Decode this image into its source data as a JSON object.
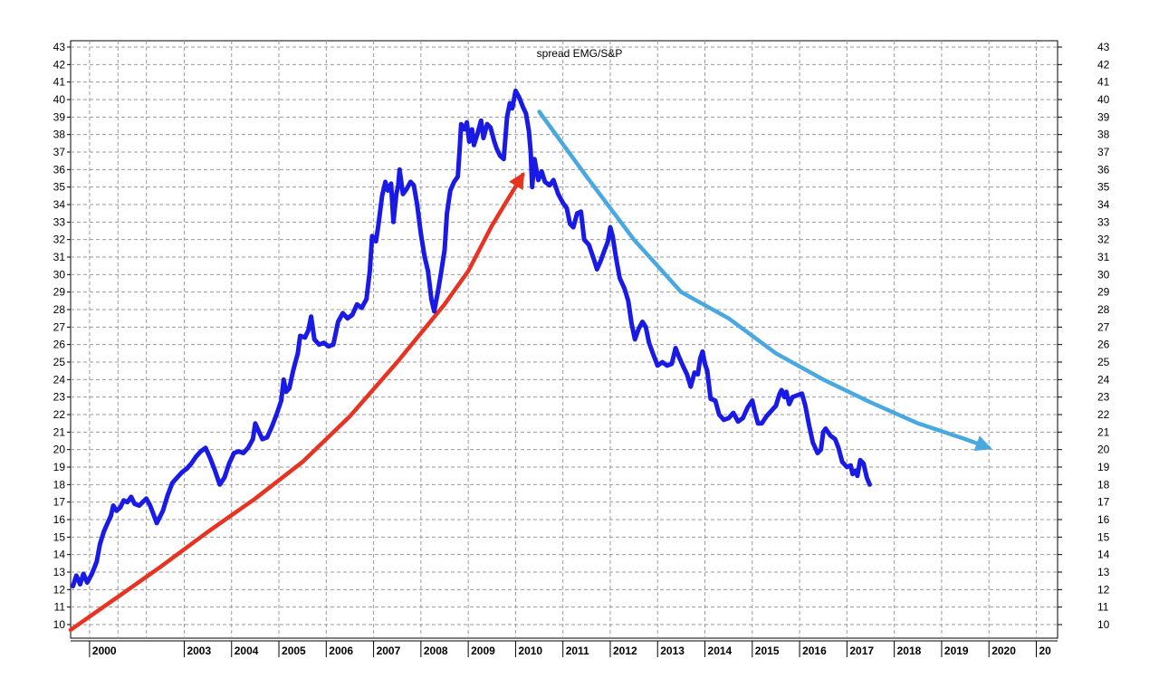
{
  "chart_data": {
    "type": "line",
    "title": "spread EMG/S&P",
    "xlabel": "",
    "ylabel": "",
    "grid": true,
    "legend": "none",
    "xlim": [
      1999.6,
      2020.45
    ],
    "ylim": [
      9.3,
      43.5
    ],
    "y_ticks": [
      10,
      11,
      12,
      13,
      14,
      15,
      16,
      17,
      18,
      19,
      20,
      21,
      22,
      23,
      24,
      25,
      26,
      27,
      28,
      29,
      30,
      31,
      32,
      33,
      34,
      35,
      36,
      37,
      38,
      39,
      40,
      41,
      42,
      43
    ],
    "x_tick_labels": [
      {
        "x": 2000.0,
        "label": "2000"
      },
      {
        "x": 2002.0,
        "label": "2003"
      },
      {
        "x": 2003.0,
        "label": "2004"
      },
      {
        "x": 2004.0,
        "label": "2005"
      },
      {
        "x": 2005.0,
        "label": "2006"
      },
      {
        "x": 2006.0,
        "label": "2007"
      },
      {
        "x": 2007.0,
        "label": "2008"
      },
      {
        "x": 2008.0,
        "label": "2009"
      },
      {
        "x": 2009.0,
        "label": "2010"
      },
      {
        "x": 2010.0,
        "label": "2011"
      },
      {
        "x": 2011.0,
        "label": "2012"
      },
      {
        "x": 2012.0,
        "label": "2013"
      },
      {
        "x": 2013.0,
        "label": "2014"
      },
      {
        "x": 2014.0,
        "label": "2015"
      },
      {
        "x": 2015.0,
        "label": "2016"
      },
      {
        "x": 2016.0,
        "label": "2017"
      },
      {
        "x": 2017.0,
        "label": "2018"
      },
      {
        "x": 2018.0,
        "label": "2019"
      },
      {
        "x": 2019.0,
        "label": "2020"
      },
      {
        "x": 2020.0,
        "label": "20"
      }
    ],
    "grid_x": [
      2000.0,
      2000.6,
      2001.2,
      2002.0,
      2003.0,
      2004.0,
      2005.0,
      2006.0,
      2007.0,
      2008.0,
      2009.0,
      2010.0,
      2011.0,
      2012.0,
      2013.0,
      2014.0,
      2015.0,
      2016.0,
      2017.0,
      2018.0,
      2019.0,
      2020.0
    ],
    "series": [
      {
        "color": "#1a1ae6",
        "points": [
          [
            1999.65,
            12.2
          ],
          [
            1999.72,
            12.8
          ],
          [
            1999.8,
            12.3
          ],
          [
            1999.87,
            12.9
          ],
          [
            1999.95,
            12.4
          ],
          [
            2000.05,
            12.9
          ],
          [
            2000.15,
            13.6
          ],
          [
            2000.22,
            14.6
          ],
          [
            2000.3,
            15.3
          ],
          [
            2000.38,
            15.8
          ],
          [
            2000.45,
            16.2
          ],
          [
            2000.5,
            16.8
          ],
          [
            2000.57,
            16.5
          ],
          [
            2000.65,
            16.7
          ],
          [
            2000.72,
            17.1
          ],
          [
            2000.8,
            17.0
          ],
          [
            2000.88,
            17.3
          ],
          [
            2000.95,
            16.9
          ],
          [
            2001.05,
            16.8
          ],
          [
            2001.12,
            17.0
          ],
          [
            2001.2,
            17.2
          ],
          [
            2001.28,
            16.8
          ],
          [
            2001.35,
            16.3
          ],
          [
            2001.42,
            15.8
          ],
          [
            2001.55,
            16.5
          ],
          [
            2001.65,
            17.4
          ],
          [
            2001.75,
            18.1
          ],
          [
            2001.85,
            18.4
          ],
          [
            2001.95,
            18.7
          ],
          [
            2002.05,
            18.9
          ],
          [
            2002.15,
            19.2
          ],
          [
            2002.25,
            19.6
          ],
          [
            2002.35,
            19.9
          ],
          [
            2002.45,
            20.1
          ],
          [
            2002.55,
            19.5
          ],
          [
            2002.65,
            18.8
          ],
          [
            2002.75,
            18.0
          ],
          [
            2002.85,
            18.4
          ],
          [
            2002.95,
            19.2
          ],
          [
            2003.05,
            19.8
          ],
          [
            2003.15,
            19.9
          ],
          [
            2003.25,
            19.8
          ],
          [
            2003.35,
            20.1
          ],
          [
            2003.45,
            20.6
          ],
          [
            2003.5,
            21.5
          ],
          [
            2003.58,
            21.0
          ],
          [
            2003.65,
            20.6
          ],
          [
            2003.75,
            20.7
          ],
          [
            2003.85,
            21.3
          ],
          [
            2003.95,
            22.0
          ],
          [
            2004.05,
            22.8
          ],
          [
            2004.1,
            24.0
          ],
          [
            2004.15,
            23.3
          ],
          [
            2004.22,
            23.5
          ],
          [
            2004.3,
            24.5
          ],
          [
            2004.4,
            25.5
          ],
          [
            2004.45,
            26.5
          ],
          [
            2004.55,
            26.4
          ],
          [
            2004.62,
            26.8
          ],
          [
            2004.68,
            27.6
          ],
          [
            2004.75,
            26.3
          ],
          [
            2004.85,
            26.0
          ],
          [
            2004.95,
            26.1
          ],
          [
            2005.05,
            25.9
          ],
          [
            2005.15,
            26.0
          ],
          [
            2005.25,
            27.3
          ],
          [
            2005.35,
            27.8
          ],
          [
            2005.45,
            27.5
          ],
          [
            2005.55,
            27.7
          ],
          [
            2005.65,
            28.3
          ],
          [
            2005.75,
            28.1
          ],
          [
            2005.85,
            28.6
          ],
          [
            2005.92,
            30.2
          ],
          [
            2005.97,
            32.2
          ],
          [
            2006.05,
            31.9
          ],
          [
            2006.1,
            32.8
          ],
          [
            2006.18,
            34.5
          ],
          [
            2006.25,
            35.3
          ],
          [
            2006.3,
            34.8
          ],
          [
            2006.37,
            35.2
          ],
          [
            2006.42,
            33.0
          ],
          [
            2006.48,
            34.6
          ],
          [
            2006.52,
            35.1
          ],
          [
            2006.55,
            36.0
          ],
          [
            2006.62,
            34.6
          ],
          [
            2006.7,
            34.9
          ],
          [
            2006.78,
            35.3
          ],
          [
            2006.85,
            35.1
          ],
          [
            2006.92,
            34.0
          ],
          [
            2007.0,
            32.3
          ],
          [
            2007.08,
            31.0
          ],
          [
            2007.15,
            30.2
          ],
          [
            2007.22,
            28.6
          ],
          [
            2007.28,
            27.9
          ],
          [
            2007.35,
            28.9
          ],
          [
            2007.42,
            30.0
          ],
          [
            2007.5,
            31.4
          ],
          [
            2007.55,
            33.5
          ],
          [
            2007.62,
            34.8
          ],
          [
            2007.7,
            35.3
          ],
          [
            2007.78,
            35.6
          ],
          [
            2007.82,
            37.2
          ],
          [
            2007.85,
            38.6
          ],
          [
            2007.92,
            38.3
          ],
          [
            2007.97,
            38.7
          ],
          [
            2008.02,
            37.6
          ],
          [
            2008.08,
            38.3
          ],
          [
            2008.12,
            37.4
          ],
          [
            2008.2,
            38.1
          ],
          [
            2008.27,
            38.8
          ],
          [
            2008.32,
            37.8
          ],
          [
            2008.4,
            38.6
          ],
          [
            2008.47,
            38.4
          ],
          [
            2008.55,
            37.6
          ],
          [
            2008.6,
            37.2
          ],
          [
            2008.67,
            36.8
          ],
          [
            2008.75,
            36.6
          ],
          [
            2008.82,
            39.0
          ],
          [
            2008.88,
            39.8
          ],
          [
            2008.93,
            39.5
          ],
          [
            2009.0,
            40.5
          ],
          [
            2009.08,
            40.1
          ],
          [
            2009.15,
            39.6
          ],
          [
            2009.22,
            39.2
          ],
          [
            2009.28,
            38.2
          ],
          [
            2009.32,
            37.0
          ],
          [
            2009.35,
            35.0
          ],
          [
            2009.4,
            36.6
          ],
          [
            2009.48,
            35.4
          ],
          [
            2009.55,
            35.9
          ],
          [
            2009.62,
            35.3
          ],
          [
            2009.72,
            35.1
          ],
          [
            2009.8,
            35.4
          ],
          [
            2009.9,
            34.6
          ],
          [
            2010.0,
            34.1
          ],
          [
            2010.08,
            33.8
          ],
          [
            2010.15,
            32.9
          ],
          [
            2010.22,
            32.7
          ],
          [
            2010.3,
            33.5
          ],
          [
            2010.38,
            33.6
          ],
          [
            2010.45,
            32.0
          ],
          [
            2010.55,
            31.7
          ],
          [
            2010.65,
            30.9
          ],
          [
            2010.72,
            30.3
          ],
          [
            2010.8,
            30.8
          ],
          [
            2010.88,
            31.4
          ],
          [
            2010.95,
            31.9
          ],
          [
            2011.0,
            32.7
          ],
          [
            2011.05,
            32.2
          ],
          [
            2011.12,
            31.0
          ],
          [
            2011.2,
            29.8
          ],
          [
            2011.3,
            29.2
          ],
          [
            2011.38,
            28.5
          ],
          [
            2011.45,
            27.2
          ],
          [
            2011.52,
            26.3
          ],
          [
            2011.6,
            26.9
          ],
          [
            2011.68,
            27.3
          ],
          [
            2011.75,
            27.0
          ],
          [
            2011.82,
            26.1
          ],
          [
            2011.9,
            25.5
          ],
          [
            2012.0,
            24.8
          ],
          [
            2012.1,
            25.0
          ],
          [
            2012.2,
            24.8
          ],
          [
            2012.3,
            24.9
          ],
          [
            2012.38,
            25.8
          ],
          [
            2012.45,
            25.3
          ],
          [
            2012.55,
            24.7
          ],
          [
            2012.62,
            24.3
          ],
          [
            2012.7,
            23.6
          ],
          [
            2012.78,
            24.4
          ],
          [
            2012.85,
            24.3
          ],
          [
            2012.9,
            25.2
          ],
          [
            2012.95,
            25.6
          ],
          [
            2013.0,
            24.9
          ],
          [
            2013.05,
            24.5
          ],
          [
            2013.12,
            22.9
          ],
          [
            2013.22,
            22.8
          ],
          [
            2013.3,
            22.0
          ],
          [
            2013.4,
            21.7
          ],
          [
            2013.5,
            21.8
          ],
          [
            2013.6,
            22.1
          ],
          [
            2013.7,
            21.6
          ],
          [
            2013.8,
            21.8
          ],
          [
            2013.9,
            22.4
          ],
          [
            2014.0,
            22.8
          ],
          [
            2014.05,
            22.2
          ],
          [
            2014.12,
            21.5
          ],
          [
            2014.2,
            21.5
          ],
          [
            2014.3,
            21.9
          ],
          [
            2014.4,
            22.2
          ],
          [
            2014.5,
            22.5
          ],
          [
            2014.58,
            23.2
          ],
          [
            2014.62,
            23.4
          ],
          [
            2014.68,
            23.0
          ],
          [
            2014.72,
            23.3
          ],
          [
            2014.78,
            22.6
          ],
          [
            2014.85,
            23.0
          ],
          [
            2014.95,
            23.1
          ],
          [
            2015.05,
            23.2
          ],
          [
            2015.12,
            22.5
          ],
          [
            2015.2,
            21.4
          ],
          [
            2015.28,
            20.4
          ],
          [
            2015.38,
            19.8
          ],
          [
            2015.45,
            20.0
          ],
          [
            2015.5,
            21.0
          ],
          [
            2015.55,
            21.2
          ],
          [
            2015.65,
            20.8
          ],
          [
            2015.75,
            20.6
          ],
          [
            2015.82,
            20.1
          ],
          [
            2015.9,
            19.3
          ],
          [
            2016.0,
            19.0
          ],
          [
            2016.08,
            19.1
          ],
          [
            2016.12,
            18.6
          ],
          [
            2016.18,
            18.8
          ],
          [
            2016.22,
            18.5
          ],
          [
            2016.28,
            19.4
          ],
          [
            2016.35,
            19.2
          ],
          [
            2016.42,
            18.4
          ],
          [
            2016.48,
            18.0
          ]
        ]
      }
    ],
    "annotations": [
      {
        "kind": "arrow",
        "color": "#e63322",
        "points": [
          [
            1999.6,
            9.7
          ],
          [
            2000.5,
            11.4
          ],
          [
            2001.5,
            13.3
          ],
          [
            2002.5,
            15.3
          ],
          [
            2003.5,
            17.2
          ],
          [
            2004.5,
            19.3
          ],
          [
            2005.5,
            21.9
          ],
          [
            2006.5,
            25.0
          ],
          [
            2007.5,
            28.3
          ],
          [
            2008.0,
            30.2
          ],
          [
            2008.5,
            32.8
          ],
          [
            2009.15,
            35.7
          ]
        ]
      },
      {
        "kind": "arrow",
        "color": "#4aa8e0",
        "points": [
          [
            2009.5,
            39.3
          ],
          [
            2010.5,
            35.6
          ],
          [
            2011.5,
            32.0
          ],
          [
            2012.5,
            29.0
          ],
          [
            2013.5,
            27.5
          ],
          [
            2014.5,
            25.5
          ],
          [
            2015.5,
            24.0
          ],
          [
            2016.5,
            22.7
          ],
          [
            2017.5,
            21.5
          ],
          [
            2018.5,
            20.6
          ],
          [
            2019.0,
            20.1
          ]
        ]
      }
    ]
  }
}
